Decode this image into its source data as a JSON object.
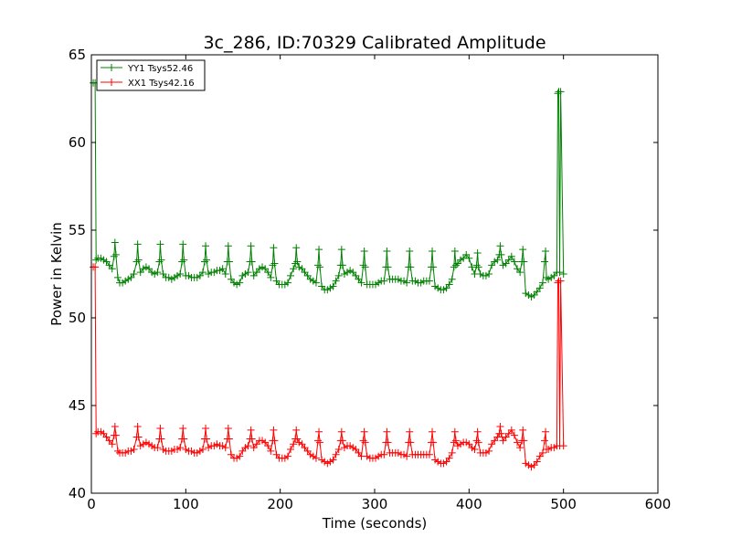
{
  "chart_data": {
    "type": "line",
    "title": "3c_286, ID:70329 Calibrated Amplitude",
    "xlabel": "Time (seconds)",
    "ylabel": "Power in Kelvin",
    "xlim": [
      0,
      600
    ],
    "ylim": [
      40,
      65
    ],
    "xticks": [
      0,
      100,
      200,
      300,
      400,
      500,
      600
    ],
    "yticks": [
      40,
      45,
      50,
      55,
      60,
      65
    ],
    "grid": false,
    "legend_position": "top-left",
    "series": [
      {
        "name": "YY1 Tsys52.46",
        "color": "#008000",
        "marker": "+",
        "x": [
          2,
          4,
          5,
          7,
          10,
          13,
          16,
          19,
          22,
          24,
          25,
          26,
          28,
          30,
          33,
          36,
          39,
          42,
          45,
          48,
          49,
          50,
          52,
          55,
          58,
          61,
          64,
          67,
          70,
          72,
          73,
          74,
          76,
          79,
          82,
          85,
          88,
          91,
          94,
          96,
          97,
          98,
          100,
          103,
          106,
          109,
          112,
          115,
          118,
          120,
          121,
          122,
          124,
          127,
          130,
          133,
          136,
          139,
          142,
          144,
          145,
          146,
          148,
          151,
          154,
          157,
          160,
          163,
          166,
          168,
          169,
          170,
          172,
          175,
          178,
          181,
          184,
          187,
          190,
          192,
          193,
          194,
          196,
          199,
          202,
          205,
          208,
          211,
          214,
          216,
          217,
          218,
          220,
          223,
          226,
          229,
          232,
          235,
          238,
          240,
          241,
          242,
          244,
          247,
          250,
          253,
          256,
          259,
          262,
          264,
          265,
          266,
          268,
          271,
          274,
          277,
          280,
          283,
          286,
          288,
          289,
          290,
          292,
          295,
          298,
          301,
          304,
          307,
          310,
          312,
          313,
          314,
          316,
          319,
          322,
          325,
          328,
          331,
          334,
          336,
          337,
          338,
          340,
          343,
          346,
          349,
          352,
          355,
          358,
          360,
          361,
          362,
          364,
          367,
          370,
          373,
          376,
          379,
          382,
          384,
          385,
          386,
          388,
          391,
          394,
          397,
          400,
          403,
          406,
          408,
          409,
          410,
          412,
          415,
          418,
          421,
          424,
          427,
          430,
          432,
          433,
          434,
          436,
          439,
          442,
          445,
          448,
          451,
          454,
          456,
          457,
          458,
          460,
          463,
          466,
          469,
          472,
          475,
          478,
          480,
          481,
          482,
          484,
          487,
          490,
          493,
          494,
          495,
          496,
          497,
          500
        ],
        "y": [
          63.4,
          63.4,
          53.3,
          53.4,
          53.4,
          53.3,
          53.2,
          53.0,
          52.8,
          53.5,
          54.3,
          53.6,
          52.3,
          52.0,
          52.0,
          52.1,
          52.2,
          52.3,
          52.5,
          53.2,
          54.2,
          53.3,
          52.6,
          52.8,
          52.9,
          52.8,
          52.6,
          52.5,
          52.6,
          53.2,
          54.2,
          53.3,
          52.5,
          52.3,
          52.3,
          52.2,
          52.3,
          52.4,
          52.5,
          53.2,
          54.2,
          53.3,
          52.4,
          52.4,
          52.3,
          52.3,
          52.3,
          52.4,
          52.6,
          53.2,
          54.1,
          53.3,
          52.5,
          52.6,
          52.6,
          52.7,
          52.7,
          52.8,
          52.5,
          53.2,
          54.1,
          53.2,
          52.2,
          52.0,
          51.9,
          52.0,
          52.4,
          52.5,
          52.6,
          53.2,
          54.1,
          53.2,
          52.4,
          52.6,
          52.8,
          52.9,
          52.8,
          52.6,
          52.3,
          53.0,
          54.0,
          53.1,
          52.1,
          51.9,
          51.9,
          51.9,
          52.0,
          52.4,
          52.8,
          53.1,
          54.0,
          53.2,
          52.9,
          52.8,
          52.6,
          52.4,
          52.2,
          52.1,
          52.0,
          53.0,
          53.9,
          52.9,
          51.8,
          51.6,
          51.6,
          51.7,
          51.8,
          52.1,
          52.4,
          53.0,
          53.9,
          53.0,
          52.5,
          52.6,
          52.7,
          52.6,
          52.4,
          52.2,
          52.0,
          53.0,
          53.8,
          52.9,
          51.9,
          51.9,
          51.9,
          51.9,
          52.0,
          52.1,
          52.1,
          52.9,
          53.8,
          52.9,
          52.2,
          52.2,
          52.2,
          52.2,
          52.1,
          52.1,
          52.0,
          52.9,
          53.8,
          52.9,
          52.1,
          52.1,
          52.0,
          52.0,
          52.1,
          52.1,
          52.1,
          52.9,
          53.8,
          52.9,
          51.8,
          51.7,
          51.6,
          51.6,
          51.7,
          51.9,
          52.2,
          52.9,
          53.8,
          53.0,
          53.1,
          53.3,
          53.4,
          53.6,
          53.4,
          52.9,
          52.5,
          53.0,
          53.7,
          52.9,
          52.5,
          52.4,
          52.4,
          52.5,
          53.0,
          53.2,
          53.3,
          53.6,
          54.1,
          53.6,
          53.0,
          53.1,
          53.3,
          53.5,
          53.2,
          52.8,
          52.6,
          53.2,
          53.9,
          53.2,
          51.4,
          51.3,
          51.2,
          51.3,
          51.5,
          51.7,
          52.0,
          53.2,
          53.8,
          52.3,
          52.2,
          52.3,
          52.4,
          52.6,
          62.8,
          62.9,
          52.6,
          62.9,
          52.5
        ]
      },
      {
        "name": "XX1 Tsys42.16",
        "color": "#ff0000",
        "marker": "+",
        "x": [
          2,
          4,
          5,
          7,
          10,
          13,
          16,
          19,
          22,
          24,
          25,
          26,
          28,
          30,
          33,
          36,
          39,
          42,
          45,
          48,
          49,
          50,
          52,
          55,
          58,
          61,
          64,
          67,
          70,
          72,
          73,
          74,
          76,
          79,
          82,
          85,
          88,
          91,
          94,
          96,
          97,
          98,
          100,
          103,
          106,
          109,
          112,
          115,
          118,
          120,
          121,
          122,
          124,
          127,
          130,
          133,
          136,
          139,
          142,
          144,
          145,
          146,
          148,
          151,
          154,
          157,
          160,
          163,
          166,
          168,
          169,
          170,
          172,
          175,
          178,
          181,
          184,
          187,
          190,
          192,
          193,
          194,
          196,
          199,
          202,
          205,
          208,
          211,
          214,
          216,
          217,
          218,
          220,
          223,
          226,
          229,
          232,
          235,
          238,
          240,
          241,
          242,
          244,
          247,
          250,
          253,
          256,
          259,
          262,
          264,
          265,
          266,
          268,
          271,
          274,
          277,
          280,
          283,
          286,
          288,
          289,
          290,
          292,
          295,
          298,
          301,
          304,
          307,
          310,
          312,
          313,
          314,
          316,
          319,
          322,
          325,
          328,
          331,
          334,
          336,
          337,
          338,
          340,
          343,
          346,
          349,
          352,
          355,
          358,
          360,
          361,
          362,
          364,
          367,
          370,
          373,
          376,
          379,
          382,
          384,
          385,
          386,
          388,
          391,
          394,
          397,
          400,
          403,
          406,
          408,
          409,
          410,
          412,
          415,
          418,
          421,
          424,
          427,
          430,
          432,
          433,
          434,
          436,
          439,
          442,
          445,
          448,
          451,
          454,
          456,
          457,
          458,
          460,
          463,
          466,
          469,
          472,
          475,
          478,
          480,
          481,
          482,
          484,
          487,
          490,
          493,
          494,
          495,
          496,
          497,
          500
        ],
        "y": [
          52.9,
          52.9,
          43.4,
          43.5,
          43.5,
          43.4,
          43.2,
          43.0,
          42.8,
          43.3,
          43.8,
          43.3,
          42.4,
          42.3,
          42.3,
          42.3,
          42.4,
          42.4,
          42.5,
          43.2,
          43.8,
          43.2,
          42.7,
          42.8,
          42.9,
          42.8,
          42.7,
          42.6,
          42.6,
          43.1,
          43.7,
          43.1,
          42.5,
          42.4,
          42.4,
          42.4,
          42.5,
          42.5,
          42.6,
          43.1,
          43.7,
          43.1,
          42.5,
          42.4,
          42.4,
          42.3,
          42.3,
          42.4,
          42.5,
          43.1,
          43.7,
          43.1,
          42.6,
          42.7,
          42.7,
          42.8,
          42.7,
          42.7,
          42.6,
          43.1,
          43.7,
          43.1,
          42.2,
          42.0,
          42.0,
          42.1,
          42.4,
          42.6,
          42.7,
          43.1,
          43.6,
          43.1,
          42.6,
          42.8,
          43.0,
          43.0,
          42.9,
          42.7,
          42.4,
          43.0,
          43.6,
          43.0,
          42.2,
          42.0,
          42.0,
          42.0,
          42.1,
          42.5,
          42.8,
          43.1,
          43.6,
          43.1,
          42.9,
          42.8,
          42.6,
          42.4,
          42.2,
          42.1,
          42.0,
          43.0,
          43.5,
          42.9,
          41.9,
          41.8,
          41.7,
          41.8,
          41.9,
          42.2,
          42.5,
          43.0,
          43.5,
          43.0,
          42.6,
          42.7,
          42.7,
          42.6,
          42.5,
          42.3,
          42.1,
          43.0,
          43.5,
          42.9,
          42.1,
          42.0,
          42.0,
          42.0,
          42.1,
          42.2,
          42.2,
          42.9,
          43.5,
          42.9,
          42.3,
          42.3,
          42.3,
          42.3,
          42.2,
          42.2,
          42.1,
          42.9,
          43.5,
          42.9,
          42.2,
          42.2,
          42.2,
          42.2,
          42.2,
          42.2,
          42.2,
          42.9,
          43.5,
          42.9,
          41.9,
          41.8,
          41.7,
          41.7,
          41.8,
          42.0,
          42.3,
          42.9,
          43.5,
          43.0,
          42.7,
          42.8,
          42.9,
          42.9,
          42.8,
          42.6,
          42.5,
          43.0,
          43.5,
          42.9,
          42.3,
          42.3,
          42.3,
          42.4,
          42.8,
          43.0,
          43.2,
          43.4,
          43.8,
          43.4,
          43.0,
          43.2,
          43.4,
          43.6,
          43.3,
          42.9,
          42.6,
          43.0,
          43.6,
          43.0,
          41.7,
          41.6,
          41.5,
          41.6,
          41.8,
          42.1,
          42.3,
          43.0,
          43.5,
          42.5,
          42.5,
          42.6,
          42.6,
          42.7,
          52.0,
          52.1,
          42.7,
          52.1,
          42.7
        ]
      }
    ]
  }
}
